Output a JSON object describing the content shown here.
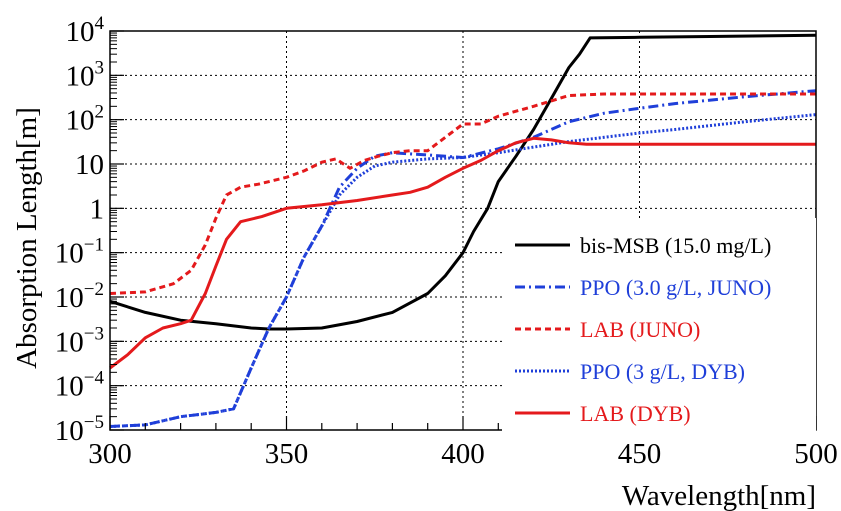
{
  "chart_data": {
    "type": "line",
    "title": "",
    "xlabel": "Wavelength[nm]",
    "ylabel": "Absorption Length[m]",
    "xlim": [
      300,
      500
    ],
    "ylim": [
      1e-05,
      10000.0
    ],
    "yscale": "log",
    "grid": true,
    "legend_position": "bottom-right",
    "x_ticks": [
      {
        "value": 300,
        "label": "300"
      },
      {
        "value": 350,
        "label": "350"
      },
      {
        "value": 400,
        "label": "400"
      },
      {
        "value": 450,
        "label": "450"
      },
      {
        "value": 500,
        "label": "500"
      }
    ],
    "y_ticks": [
      {
        "value": 1e-05,
        "base": "10",
        "exp": "−5",
        "plain": ""
      },
      {
        "value": 0.0001,
        "base": "10",
        "exp": "−4",
        "plain": ""
      },
      {
        "value": 0.001,
        "base": "10",
        "exp": "−3",
        "plain": ""
      },
      {
        "value": 0.01,
        "base": "10",
        "exp": "−2",
        "plain": ""
      },
      {
        "value": 0.1,
        "base": "10",
        "exp": "−1",
        "plain": ""
      },
      {
        "value": 1,
        "base": "",
        "exp": "",
        "plain": "1"
      },
      {
        "value": 10,
        "base": "",
        "exp": "",
        "plain": "10"
      },
      {
        "value": 100,
        "base": "10",
        "exp": "2",
        "plain": ""
      },
      {
        "value": 1000,
        "base": "10",
        "exp": "3",
        "plain": ""
      },
      {
        "value": 10000,
        "base": "10",
        "exp": "4",
        "plain": ""
      }
    ],
    "series": [
      {
        "name": "bis-MSB (15.0 mg/L)",
        "color": "#000000",
        "dash": "solid",
        "points": [
          [
            300,
            0.008
          ],
          [
            310,
            0.0045
          ],
          [
            320,
            0.003
          ],
          [
            330,
            0.0025
          ],
          [
            340,
            0.002
          ],
          [
            345,
            0.0019
          ],
          [
            350,
            0.0019
          ],
          [
            360,
            0.002
          ],
          [
            370,
            0.0028
          ],
          [
            380,
            0.0045
          ],
          [
            390,
            0.012
          ],
          [
            395,
            0.03
          ],
          [
            400,
            0.1
          ],
          [
            403,
            0.3
          ],
          [
            407,
            1
          ],
          [
            410,
            4
          ],
          [
            415,
            15
          ],
          [
            420,
            60
          ],
          [
            425,
            300
          ],
          [
            430,
            1500
          ],
          [
            433,
            3000
          ],
          [
            436,
            7000
          ],
          [
            450,
            7200
          ],
          [
            470,
            7500
          ],
          [
            500,
            8000
          ]
        ]
      },
      {
        "name": "PPO (3.0 g/L, JUNO)",
        "color": "#1f3fd9",
        "dash": "dashdot",
        "points": [
          [
            300,
            1.2e-05
          ],
          [
            310,
            1.3e-05
          ],
          [
            320,
            2e-05
          ],
          [
            330,
            2.5e-05
          ],
          [
            335,
            3e-05
          ],
          [
            340,
            0.00025
          ],
          [
            345,
            0.002
          ],
          [
            350,
            0.01
          ],
          [
            355,
            0.08
          ],
          [
            360,
            0.4
          ],
          [
            365,
            3
          ],
          [
            370,
            8
          ],
          [
            375,
            15
          ],
          [
            380,
            18
          ],
          [
            390,
            16
          ],
          [
            400,
            14
          ],
          [
            410,
            22
          ],
          [
            420,
            40
          ],
          [
            430,
            90
          ],
          [
            440,
            140
          ],
          [
            450,
            180
          ],
          [
            460,
            230
          ],
          [
            480,
            330
          ],
          [
            500,
            450
          ]
        ]
      },
      {
        "name": "LAB (JUNO)",
        "color": "#e41a1c",
        "dash": "dash",
        "points": [
          [
            300,
            0.012
          ],
          [
            310,
            0.013
          ],
          [
            318,
            0.02
          ],
          [
            323,
            0.04
          ],
          [
            327,
            0.15
          ],
          [
            330,
            0.6
          ],
          [
            333,
            2
          ],
          [
            337,
            3
          ],
          [
            342,
            3.5
          ],
          [
            350,
            5
          ],
          [
            355,
            7
          ],
          [
            360,
            11
          ],
          [
            364,
            13
          ],
          [
            368,
            8
          ],
          [
            372,
            12
          ],
          [
            376,
            15
          ],
          [
            380,
            18
          ],
          [
            385,
            20
          ],
          [
            390,
            20
          ],
          [
            395,
            40
          ],
          [
            400,
            80
          ],
          [
            405,
            80
          ],
          [
            410,
            120
          ],
          [
            420,
            200
          ],
          [
            430,
            350
          ],
          [
            440,
            380
          ],
          [
            460,
            380
          ],
          [
            480,
            380
          ],
          [
            500,
            380
          ]
        ]
      },
      {
        "name": "PPO (3 g/L, DYB)",
        "color": "#1f3fd9",
        "dash": "dot",
        "points": [
          [
            300,
            1.2e-05
          ],
          [
            310,
            1.3e-05
          ],
          [
            320,
            2e-05
          ],
          [
            330,
            2.5e-05
          ],
          [
            335,
            3e-05
          ],
          [
            340,
            0.00025
          ],
          [
            345,
            0.002
          ],
          [
            350,
            0.01
          ],
          [
            355,
            0.08
          ],
          [
            360,
            0.4
          ],
          [
            365,
            2
          ],
          [
            370,
            5
          ],
          [
            375,
            9
          ],
          [
            380,
            11
          ],
          [
            390,
            13
          ],
          [
            400,
            14
          ],
          [
            410,
            18
          ],
          [
            420,
            24
          ],
          [
            430,
            32
          ],
          [
            440,
            40
          ],
          [
            450,
            50
          ],
          [
            460,
            60
          ],
          [
            480,
            90
          ],
          [
            500,
            130
          ]
        ]
      },
      {
        "name": "LAB (DYB)",
        "color": "#e41a1c",
        "dash": "solid",
        "points": [
          [
            300,
            0.00025
          ],
          [
            305,
            0.0005
          ],
          [
            310,
            0.0012
          ],
          [
            315,
            0.002
          ],
          [
            320,
            0.0025
          ],
          [
            323,
            0.003
          ],
          [
            327,
            0.012
          ],
          [
            330,
            0.05
          ],
          [
            333,
            0.2
          ],
          [
            337,
            0.5
          ],
          [
            343,
            0.65
          ],
          [
            350,
            1
          ],
          [
            360,
            1.2
          ],
          [
            370,
            1.5
          ],
          [
            380,
            2
          ],
          [
            385,
            2.3
          ],
          [
            390,
            3
          ],
          [
            395,
            5
          ],
          [
            400,
            8
          ],
          [
            405,
            12
          ],
          [
            410,
            20
          ],
          [
            415,
            30
          ],
          [
            420,
            38
          ],
          [
            425,
            35
          ],
          [
            430,
            30
          ],
          [
            435,
            28
          ],
          [
            440,
            28
          ],
          [
            450,
            28
          ],
          [
            470,
            28
          ],
          [
            500,
            28
          ]
        ]
      }
    ]
  }
}
